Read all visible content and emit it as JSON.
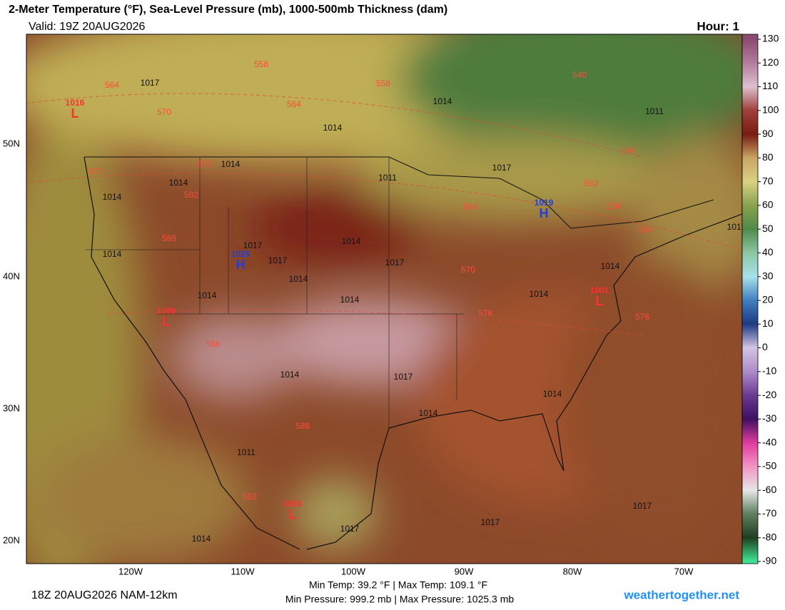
{
  "header": {
    "title": "2-Meter Temperature (°F), Sea-Level Pressure (mb), 1000-500mb Thickness (dam)",
    "valid": "Valid: 19Z 20AUG2026",
    "hour": "Hour: 1"
  },
  "colorbar": {
    "ticks": [
      130,
      120,
      110,
      100,
      90,
      80,
      70,
      60,
      50,
      40,
      30,
      20,
      10,
      0,
      -10,
      -20,
      -30,
      -40,
      -50,
      -60,
      -70,
      -80,
      -90
    ],
    "colors": [
      "#8a4b72",
      "#b27d9c",
      "#dcc0cf",
      "#a0403a",
      "#781c12",
      "#c9a463",
      "#d9d282",
      "#8aa24e",
      "#4f8a4c",
      "#8cc6a4",
      "#a6e2ea",
      "#3f7fc0",
      "#1e3a82",
      "#d3c4e4",
      "#ad8cc6",
      "#6b3a92",
      "#3f1060",
      "#e03c9e",
      "#f294c4",
      "#e6e6e6",
      "#5e7e5e",
      "#1f3f20",
      "#3ee494"
    ]
  },
  "axes": {
    "lon": [
      "120W",
      "110W",
      "100W",
      "90W",
      "80W",
      "70W"
    ],
    "lat": [
      "50N",
      "40N",
      "30N",
      "20N"
    ]
  },
  "map": {
    "isobars": [
      "1017",
      "1014",
      "1014",
      "1011",
      "1014",
      "1014",
      "1011",
      "1017",
      "1014",
      "1014",
      "1017",
      "1014",
      "1017",
      "1017",
      "1014",
      "1017",
      "1014",
      "1014",
      "1014",
      "1014",
      "1014",
      "1017",
      "1014",
      "1014",
      "1011",
      "1017",
      "1014",
      "1017",
      "1017"
    ],
    "thickness": [
      "558",
      "564",
      "564",
      "558",
      "570",
      "576",
      "570",
      "582",
      "588",
      "564",
      "552",
      "558",
      "546",
      "540",
      "570",
      "576",
      "564",
      "588",
      "588",
      "582",
      "576"
    ],
    "highs": [
      {
        "pressure": "1019",
        "symbol": "H"
      },
      {
        "pressure": "1025",
        "symbol": "H"
      }
    ],
    "lows": [
      {
        "pressure": "1016",
        "symbol": "L"
      },
      {
        "pressure": "1009",
        "symbol": "L"
      },
      {
        "pressure": "1001",
        "symbol": "L"
      },
      {
        "pressure": "1005",
        "symbol": "L"
      }
    ]
  },
  "footer": {
    "run": "18Z 20AUG2026 NAM-12km",
    "temps": "Min Temp:  39.2 °F | Max Temp: 109.1 °F",
    "pressures": "Min Pressure: 999.2 mb | Max Pressure: 1025.3 mb",
    "site": "weathertogether.net"
  }
}
